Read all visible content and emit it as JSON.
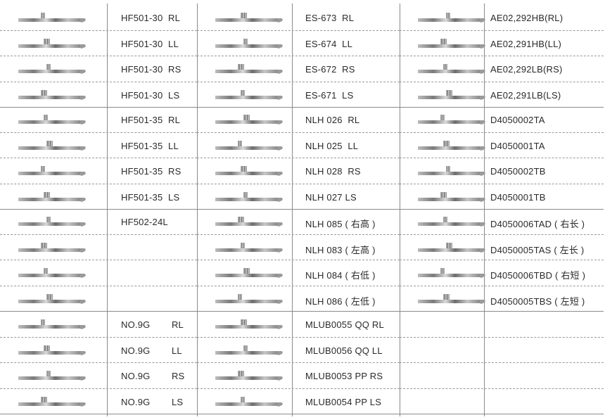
{
  "columns": [
    {
      "groups": [
        [
          "HF501-30  RL",
          "HF501-30  LL",
          "HF501-30  RS",
          "HF501-30  LS"
        ],
        [
          "HF501-35  RL",
          "HF501-35  LL",
          "HF501-35  RS",
          "HF501-35  LS"
        ],
        [
          "HF502-24L",
          "",
          "",
          ""
        ],
        [
          "NO.9G        RL",
          "NO.9G        LL",
          "NO.9G        RS",
          "NO.9G        LS"
        ]
      ]
    },
    {
      "groups": [
        [
          "ES-673  RL",
          "ES-674  LL",
          "ES-672  RS",
          "ES-671  LS"
        ],
        [
          "NLH 026  RL",
          "NLH 025  LL",
          "NLH 028  RS",
          "NLH 027 LS"
        ],
        [
          "NLH 085 ( 右高 )",
          "NLH 083 ( 左高 )",
          "NLH 084 ( 右低 )",
          "NLH 086 ( 左低 )"
        ],
        [
          "MLUB0055 QQ RL",
          "MLUB0056 QQ LL",
          "MLUB0053 PP RS",
          "MLUB0054 PP LS"
        ]
      ]
    },
    {
      "groups": [
        [
          "AE02,292HB(RL)",
          "AE02,291HB(LL)",
          "AE02,292LB(RS)",
          "AE02,291LB(LS)"
        ],
        [
          "D4050002TA",
          "D4050001TA",
          "D4050002TB",
          "D4050001TB"
        ],
        [
          "D4050006TAD ( 右长 )",
          "D4050005TAS ( 左长 )",
          "D4050006TBD ( 右短 )",
          "D4050005TBS ( 左短 )"
        ],
        [
          "",
          "",
          "",
          ""
        ]
      ]
    }
  ],
  "colors": {
    "line": "#8a8a8a",
    "dash": "#9a9a9a",
    "text": "#2a2a2a"
  },
  "blade_icon": "needle-blade-icon"
}
